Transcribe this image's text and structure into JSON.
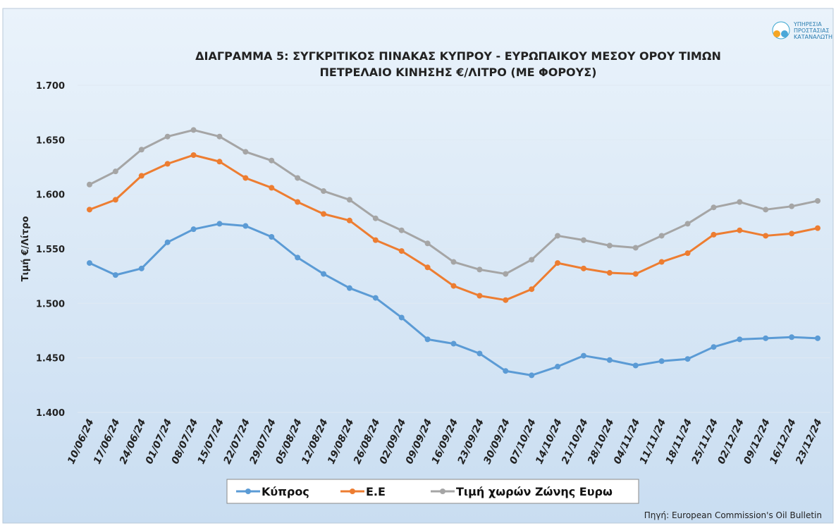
{
  "chart_data": {
    "type": "line",
    "title": [
      "ΔΙΑΓΡΑΜΜΑ 5: ΣΥΓΚΡΙΤΙΚΟΣ ΠΙΝΑΚΑΣ ΚΥΠΡΟΥ - ΕΥΡΩΠΑΙΚΟΥ ΜΕΣΟΥ ΟΡΟΥ ΤΙΜΩΝ",
      "ΠΕΤΡΕΛΑΙΟ ΚΙΝΗΣΗΣ €/ΛΙΤΡΟ (ΜΕ ΦΟΡΟΥΣ)"
    ],
    "y_label": "Τιμή €/Λίτρο",
    "source": "Πηγή: European Commission's Oil Bulletin",
    "logo": [
      "ΥΠΗΡΕΣΙΑ",
      "ΠΡΟΣΤΑΣΙΑΣ",
      "ΚΑΤΑΝΑΛΩΤΗ"
    ],
    "categories": [
      "10/06/24",
      "17/06/24",
      "24/06/24",
      "01/07/24",
      "08/07/24",
      "15/07/24",
      "22/07/24",
      "29/07/24",
      "05/08/24",
      "12/08/24",
      "19/08/24",
      "26/08/24",
      "02/09/24",
      "09/09/24",
      "16/09/24",
      "23/09/24",
      "30/09/24",
      "07/10/24",
      "14/10/24",
      "21/10/24",
      "28/10/24",
      "04/11/24",
      "11/11/24",
      "18/11/24",
      "25/11/24",
      "02/12/24",
      "09/12/24",
      "16/12/24",
      "23/12/24"
    ],
    "series": [
      {
        "name": "Κύπρος",
        "color": "#5b9bd5",
        "values": [
          1.537,
          1.526,
          1.532,
          1.556,
          1.568,
          1.573,
          1.571,
          1.561,
          1.542,
          1.527,
          1.514,
          1.505,
          1.487,
          1.467,
          1.463,
          1.454,
          1.438,
          1.434,
          1.442,
          1.452,
          1.448,
          1.443,
          1.447,
          1.449,
          1.46,
          1.467,
          1.468,
          1.469,
          1.468
        ]
      },
      {
        "name": "Ε.Ε",
        "color": "#ed7d31",
        "values": [
          1.586,
          1.595,
          1.617,
          1.628,
          1.636,
          1.63,
          1.615,
          1.606,
          1.593,
          1.582,
          1.576,
          1.558,
          1.548,
          1.533,
          1.516,
          1.507,
          1.503,
          1.513,
          1.537,
          1.532,
          1.528,
          1.527,
          1.538,
          1.546,
          1.563,
          1.567,
          1.562,
          1.564,
          1.569
        ]
      },
      {
        "name": "Τιμή χωρών Ζώνης Ευρω",
        "color": "#a5a5a5",
        "values": [
          1.609,
          1.621,
          1.641,
          1.653,
          1.659,
          1.653,
          1.639,
          1.631,
          1.615,
          1.603,
          1.595,
          1.578,
          1.567,
          1.555,
          1.538,
          1.531,
          1.527,
          1.54,
          1.562,
          1.558,
          1.553,
          1.551,
          1.562,
          1.573,
          1.588,
          1.593,
          1.586,
          1.589,
          1.594
        ]
      }
    ],
    "ylim": [
      1.4,
      1.7
    ],
    "yticks": [
      {
        "value": 1.4,
        "label": "1.400"
      },
      {
        "value": 1.45,
        "label": "1.450"
      },
      {
        "value": 1.5,
        "label": "1.500"
      },
      {
        "value": 1.55,
        "label": "1.550"
      },
      {
        "value": 1.6,
        "label": "1.600"
      },
      {
        "value": 1.65,
        "label": "1.650"
      },
      {
        "value": 1.7,
        "label": "1.700"
      }
    ],
    "grid": true,
    "legend": "bottom"
  }
}
